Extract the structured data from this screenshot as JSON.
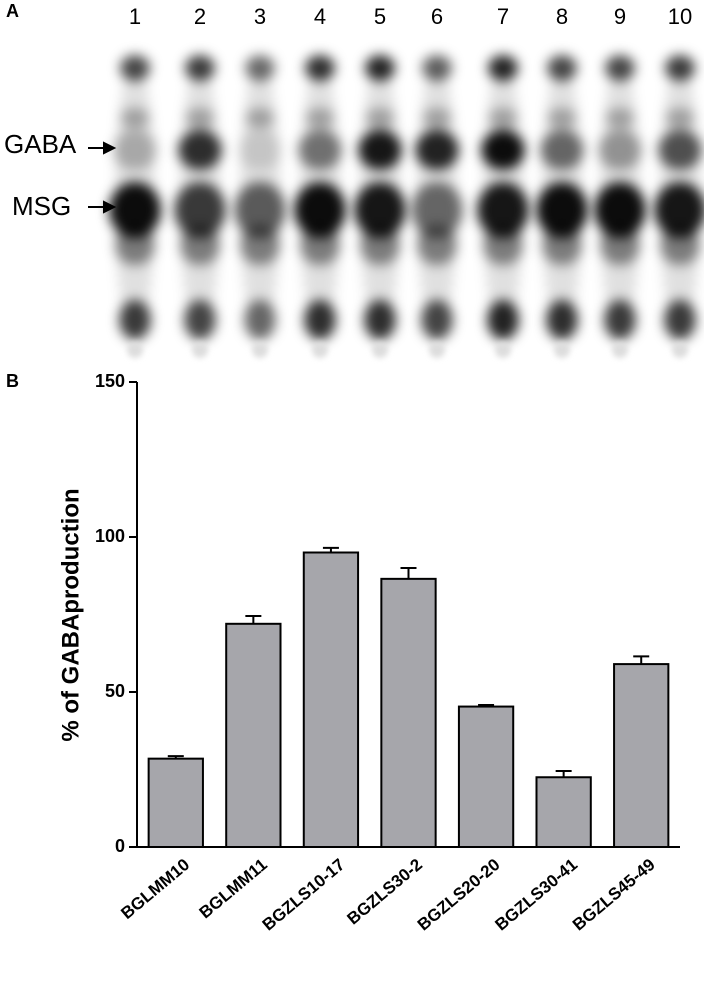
{
  "panel_a": {
    "label": "A",
    "lanes": [
      "1",
      "2",
      "3",
      "4",
      "5",
      "6",
      "7",
      "8",
      "9",
      "10"
    ],
    "markers": [
      "GABA",
      "MSG"
    ]
  },
  "panel_b": {
    "label": "B"
  },
  "chart_data": {
    "type": "bar",
    "ylabel": "% of GABAproduction",
    "categories": [
      "BGLMM10",
      "BGLMM11",
      "BGZLS10-17",
      "BGZLS30-2",
      "BGZLS20-20",
      "BGZLS30-41",
      "BGZLS45-49"
    ],
    "values": [
      28.5,
      72,
      95,
      86.5,
      45.3,
      22.5,
      59
    ],
    "errors": [
      0.8,
      2.5,
      1.5,
      3.5,
      0.5,
      2,
      2.5
    ],
    "color": "#a6a6ab",
    "ylim": [
      0,
      150
    ],
    "yticks": [
      0,
      50,
      100,
      150
    ]
  }
}
